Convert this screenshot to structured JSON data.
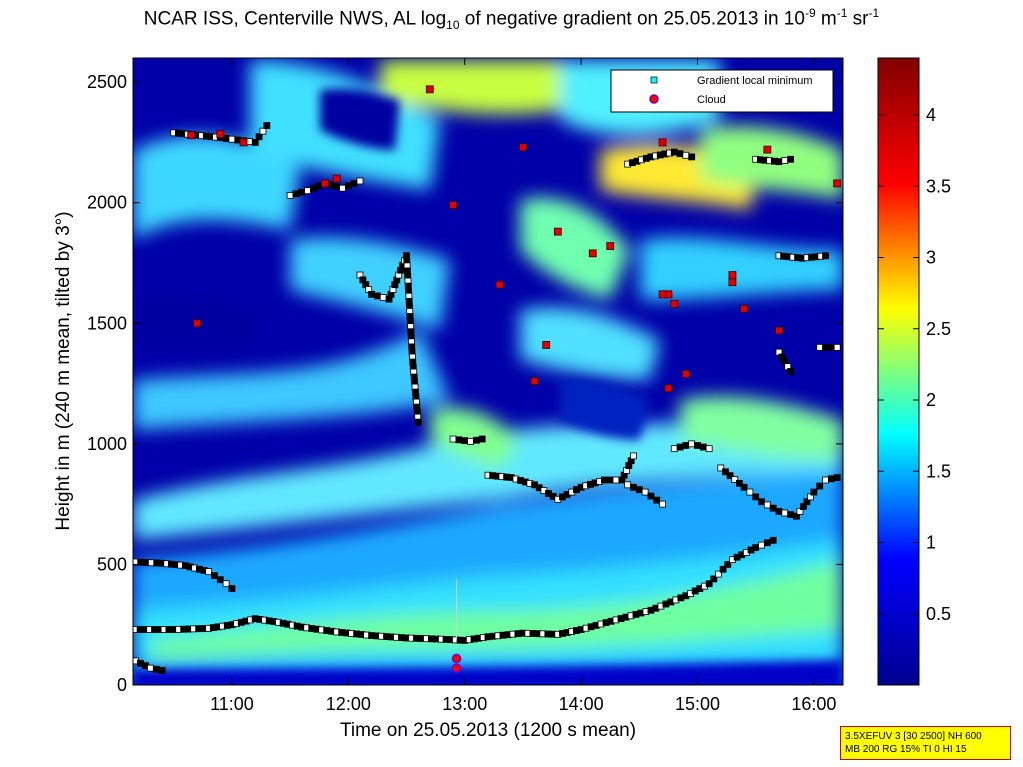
{
  "title": {
    "pre": "NCAR ISS, Centerville NWS, AL log",
    "sub": "10",
    "mid": " of negative gradient on 25.05.2013 in 10",
    "sup1": "-9",
    "unit1": " m",
    "sup2": "-1",
    "unit2": " sr",
    "sup3": "-1"
  },
  "info_box": {
    "line1": "3.5XEFUV 3 [30 2500] NH 600",
    "line2": "MB 200 RG 15% TI 0 HI 15"
  },
  "chart_data": {
    "type": "heatmap",
    "xlabel": "Time on 25.05.2013 (1200 s mean)",
    "ylabel": "Height in m (240 m mean, tilted by 3°)",
    "xlim": [
      10.15,
      16.25
    ],
    "ylim": [
      0,
      2600
    ],
    "x_ticks": [
      {
        "value": 11,
        "label": "11:00"
      },
      {
        "value": 12,
        "label": "12:00"
      },
      {
        "value": 13,
        "label": "13:00"
      },
      {
        "value": 14,
        "label": "14:00"
      },
      {
        "value": 15,
        "label": "15:00"
      },
      {
        "value": 16,
        "label": "16:00"
      }
    ],
    "y_ticks": [
      {
        "value": 0,
        "label": "0"
      },
      {
        "value": 500,
        "label": "500"
      },
      {
        "value": 1000,
        "label": "1000"
      },
      {
        "value": 1500,
        "label": "1500"
      },
      {
        "value": 2000,
        "label": "2000"
      },
      {
        "value": 2500,
        "label": "2500"
      }
    ],
    "colorbar": {
      "range": [
        0,
        4.4
      ],
      "ticks": [
        {
          "value": 0.5,
          "label": "0.5"
        },
        {
          "value": 1,
          "label": "1"
        },
        {
          "value": 1.5,
          "label": "1.5"
        },
        {
          "value": 2,
          "label": "2"
        },
        {
          "value": 2.5,
          "label": "2.5"
        },
        {
          "value": 3,
          "label": "3"
        },
        {
          "value": 3.5,
          "label": "3.5"
        },
        {
          "value": 4,
          "label": "4"
        }
      ],
      "colormap": [
        "#00008f",
        "#0000ff",
        "#00ffff",
        "#ffff00",
        "#ff0000",
        "#800000"
      ]
    },
    "legend": {
      "placement": "top-right",
      "entries": [
        {
          "label": "Gradient local minimum",
          "marker": "square",
          "color": "#00ffff"
        },
        {
          "label": "Cloud",
          "marker": "circle",
          "color": "#ff0000"
        }
      ]
    },
    "series": [
      {
        "name": "Gradient local minimum",
        "marker": "square",
        "layers": [
          {
            "points": [
              [
                10.17,
                230
              ],
              [
                10.5,
                230
              ],
              [
                10.8,
                235
              ],
              [
                11.0,
                250
              ],
              [
                11.2,
                275
              ],
              [
                11.4,
                260
              ],
              [
                11.6,
                240
              ],
              [
                11.9,
                220
              ],
              [
                12.2,
                205
              ],
              [
                12.5,
                195
              ],
              [
                12.8,
                190
              ],
              [
                13.0,
                185
              ],
              [
                13.2,
                200
              ],
              [
                13.5,
                215
              ],
              [
                13.8,
                210
              ],
              [
                14.0,
                230
              ],
              [
                14.3,
                270
              ],
              [
                14.6,
                310
              ],
              [
                14.9,
                370
              ],
              [
                15.1,
                420
              ],
              [
                15.3,
                520
              ],
              [
                15.5,
                570
              ],
              [
                15.65,
                600
              ]
            ]
          },
          {
            "points": [
              [
                10.17,
                510
              ],
              [
                10.4,
                505
              ],
              [
                10.6,
                495
              ],
              [
                10.8,
                470
              ],
              [
                10.95,
                420
              ],
              [
                11.0,
                400
              ]
            ]
          },
          {
            "points": [
              [
                10.17,
                100
              ],
              [
                10.3,
                70
              ],
              [
                10.4,
                60
              ]
            ]
          },
          {
            "points": [
              [
                10.5,
                2290
              ],
              [
                10.7,
                2280
              ],
              [
                10.9,
                2270
              ],
              [
                11.05,
                2260
              ],
              [
                11.2,
                2250
              ],
              [
                11.3,
                2320
              ]
            ]
          },
          {
            "points": [
              [
                11.5,
                2030
              ],
              [
                11.65,
                2050
              ],
              [
                11.8,
                2080
              ],
              [
                11.95,
                2060
              ],
              [
                12.1,
                2090
              ]
            ]
          },
          {
            "points": [
              [
                12.9,
                1020
              ],
              [
                13.05,
                1010
              ],
              [
                13.15,
                1020
              ]
            ]
          },
          {
            "points": [
              [
                13.2,
                870
              ],
              [
                13.4,
                860
              ],
              [
                13.6,
                830
              ],
              [
                13.8,
                770
              ],
              [
                14.0,
                820
              ],
              [
                14.2,
                850
              ],
              [
                14.35,
                850
              ],
              [
                14.45,
                950
              ]
            ]
          },
          {
            "points": [
              [
                14.4,
                2160
              ],
              [
                14.6,
                2190
              ],
              [
                14.8,
                2210
              ],
              [
                14.95,
                2190
              ]
            ]
          },
          {
            "points": [
              [
                14.4,
                830
              ],
              [
                14.55,
                800
              ],
              [
                14.7,
                750
              ]
            ]
          },
          {
            "points": [
              [
                14.8,
                980
              ],
              [
                14.95,
                1000
              ],
              [
                15.1,
                980
              ]
            ]
          },
          {
            "points": [
              [
                15.2,
                900
              ],
              [
                15.4,
                820
              ],
              [
                15.55,
                760
              ],
              [
                15.7,
                720
              ],
              [
                15.85,
                700
              ],
              [
                16.0,
                800
              ],
              [
                16.1,
                850
              ],
              [
                16.2,
                860
              ]
            ]
          },
          {
            "points": [
              [
                15.5,
                2180
              ],
              [
                15.7,
                2170
              ],
              [
                15.8,
                2180
              ]
            ]
          },
          {
            "points": [
              [
                15.7,
                1780
              ],
              [
                15.9,
                1770
              ],
              [
                16.1,
                1780
              ]
            ]
          },
          {
            "points": [
              [
                16.05,
                1400
              ],
              [
                16.2,
                1400
              ]
            ]
          },
          {
            "points": [
              [
                15.7,
                1380
              ],
              [
                15.8,
                1300
              ]
            ]
          },
          {
            "points": [
              [
                12.1,
                1700
              ],
              [
                12.2,
                1620
              ],
              [
                12.35,
                1600
              ],
              [
                12.5,
                1780
              ],
              [
                12.55,
                1360
              ],
              [
                12.6,
                1090
              ]
            ]
          }
        ]
      },
      {
        "name": "Cloud",
        "marker": "circle",
        "points": [
          [
            12.93,
            110
          ],
          [
            12.93,
            70
          ]
        ]
      }
    ],
    "highlight_points": [
      [
        10.65,
        2280
      ],
      [
        10.9,
        2285
      ],
      [
        11.1,
        2250
      ],
      [
        11.8,
        2080
      ],
      [
        11.9,
        2100
      ],
      [
        12.7,
        2470
      ],
      [
        12.9,
        1990
      ],
      [
        13.3,
        1660
      ],
      [
        13.5,
        2230
      ],
      [
        13.6,
        1260
      ],
      [
        13.7,
        1410
      ],
      [
        13.8,
        1880
      ],
      [
        14.1,
        1790
      ],
      [
        14.25,
        1820
      ],
      [
        14.7,
        2250
      ],
      [
        14.75,
        1620
      ],
      [
        14.7,
        1620
      ],
      [
        14.8,
        1580
      ],
      [
        14.75,
        1230
      ],
      [
        14.9,
        1290
      ],
      [
        15.3,
        1700
      ],
      [
        15.4,
        1560
      ],
      [
        15.6,
        2220
      ],
      [
        15.7,
        1470
      ],
      [
        16.2,
        2080
      ],
      [
        16.1,
        2500
      ],
      [
        10.7,
        1500
      ],
      [
        15.3,
        1670
      ]
    ]
  }
}
